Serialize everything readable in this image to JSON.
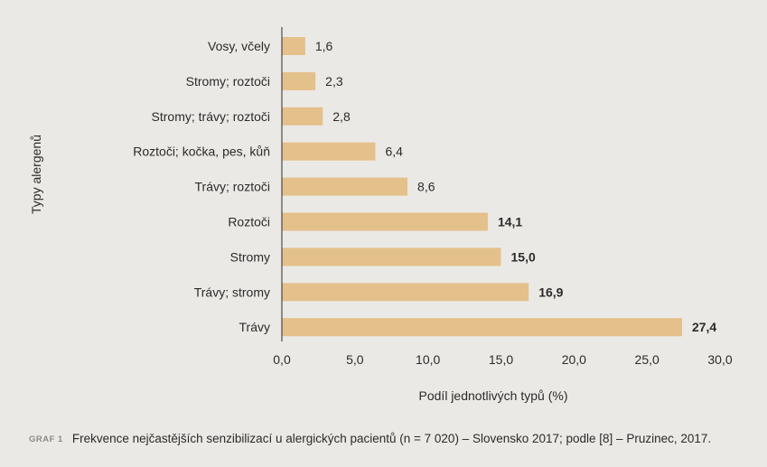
{
  "chart_data": {
    "type": "bar",
    "orientation": "horizontal",
    "categories": [
      "Vosy, včely",
      "Stromy; roztoči",
      "Stromy; trávy; roztoči",
      "Roztoči; kočka, pes, kůň",
      "Trávy; roztoči",
      "Roztoči",
      "Stromy",
      "Trávy; stromy",
      "Trávy"
    ],
    "values": [
      1.6,
      2.3,
      2.8,
      6.4,
      8.6,
      14.1,
      15.0,
      16.9,
      27.4
    ],
    "value_labels": [
      "1,6",
      "2,3",
      "2,8",
      "6,4",
      "8,6",
      "14,1",
      "15,0",
      "16,9",
      "27,4"
    ],
    "bold_labels": [
      false,
      false,
      false,
      false,
      false,
      true,
      true,
      true,
      true
    ],
    "xlabel": "Podíl jednotlivých typů (%)",
    "ylabel": "Typy alergenů",
    "xlim": [
      0,
      30
    ],
    "xticks": [
      0,
      5,
      10,
      15,
      20,
      25,
      30
    ],
    "xtick_labels": [
      "0,0",
      "5,0",
      "10,0",
      "15,0",
      "20,0",
      "25,0",
      "30,0"
    ],
    "grid": false,
    "bar_color": "#e4c08a"
  },
  "caption": {
    "tag": "GRAF 1",
    "text": "Frekvence nejčastějších senzibilizací u alergických pacientů (n = 7 020) – Slovensko 2017; podle [8] – Pruzinec, 2017."
  }
}
